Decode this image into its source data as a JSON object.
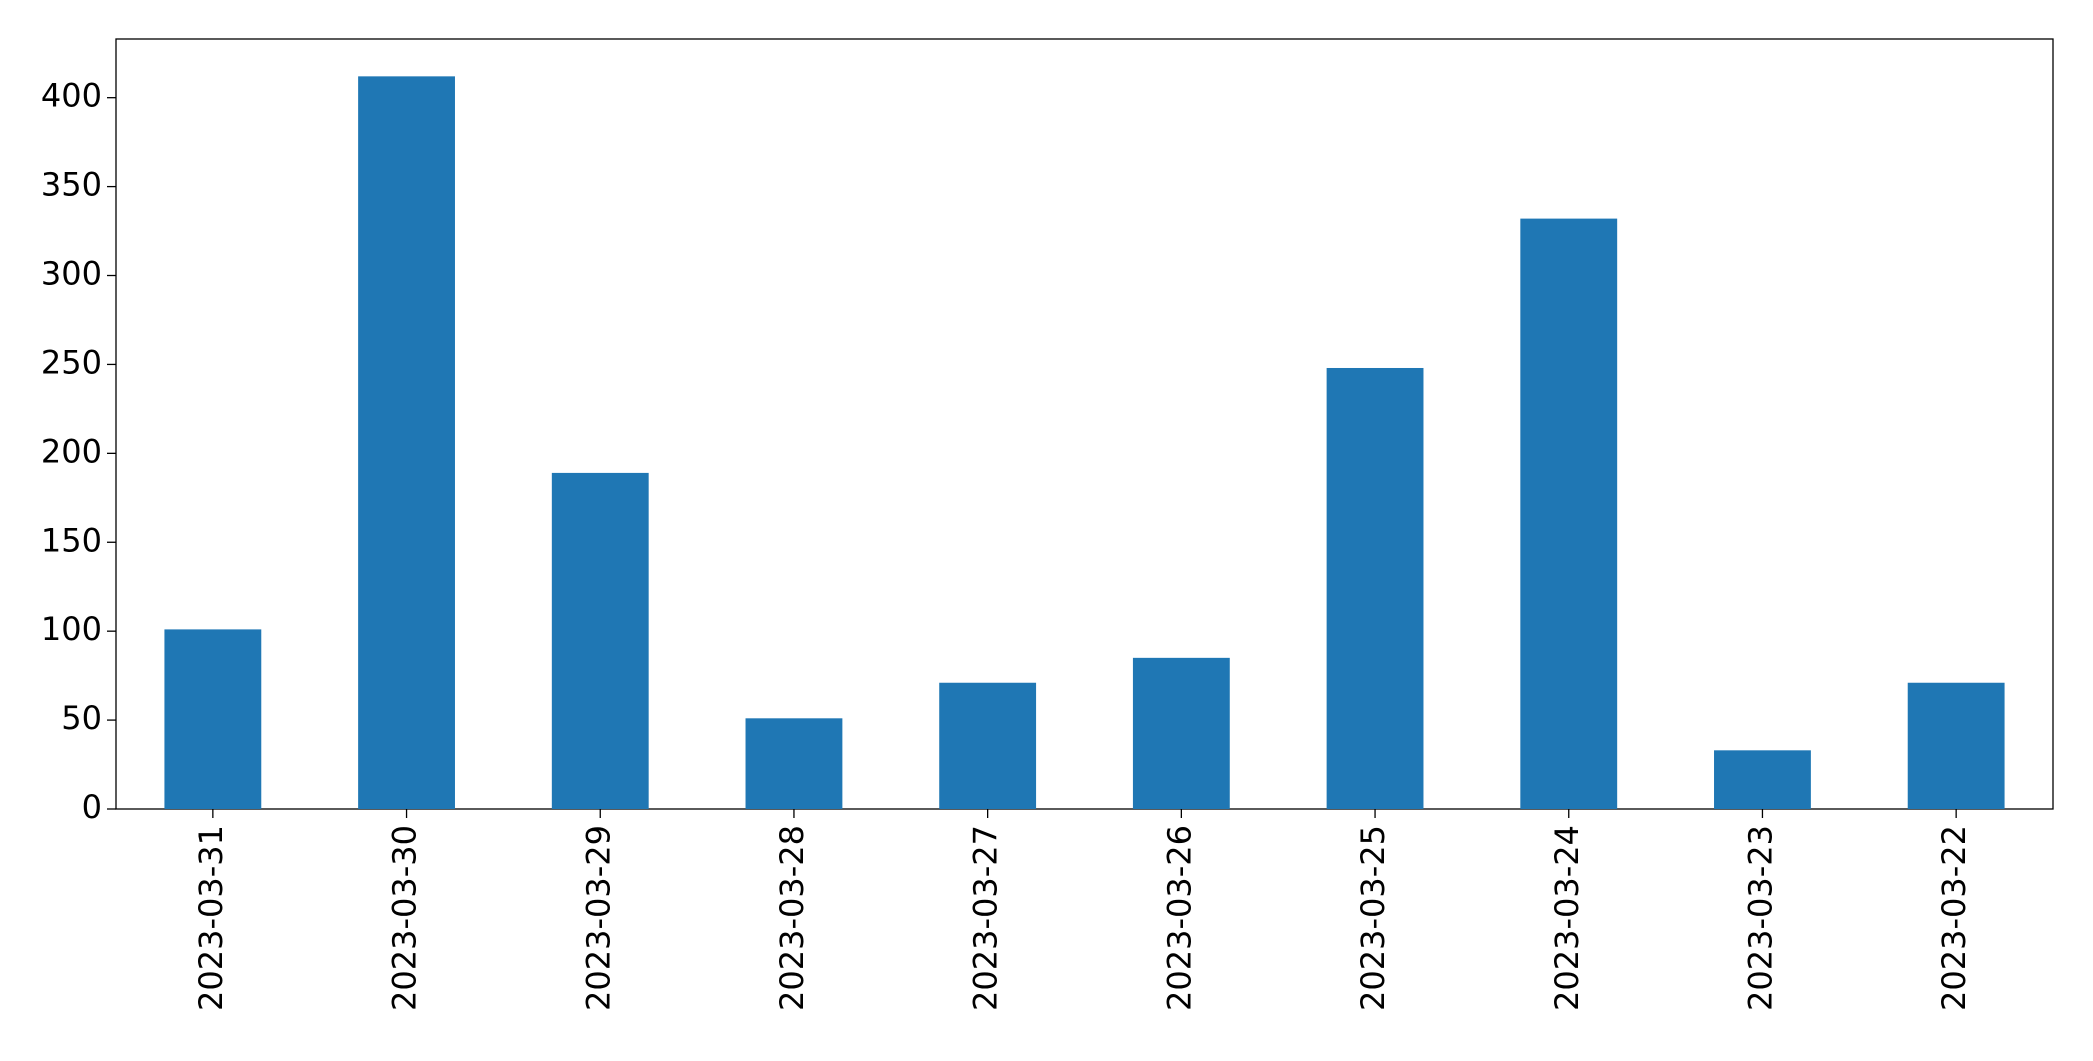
{
  "chart_data": {
    "type": "bar",
    "categories": [
      "2023-03-31",
      "2023-03-30",
      "2023-03-29",
      "2023-03-28",
      "2023-03-27",
      "2023-03-26",
      "2023-03-25",
      "2023-03-24",
      "2023-03-23",
      "2023-03-22"
    ],
    "values": [
      101,
      412,
      189,
      51,
      71,
      85,
      248,
      332,
      33,
      71
    ],
    "color": "#1f77b4",
    "ylim": [
      0,
      433
    ],
    "yticks": [
      0,
      50,
      100,
      150,
      200,
      250,
      300,
      350,
      400
    ],
    "grid": false
  }
}
